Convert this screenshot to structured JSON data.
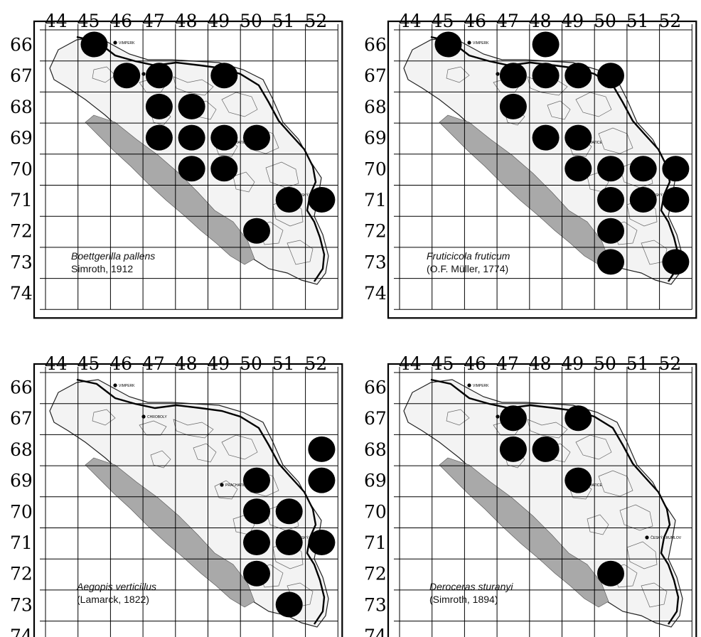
{
  "grid_columns": [
    "44",
    "45",
    "46",
    "47",
    "48",
    "49",
    "50",
    "51",
    "52"
  ],
  "grid_rows": [
    "66",
    "67",
    "68",
    "69",
    "70",
    "71",
    "72",
    "73",
    "74"
  ],
  "town_labels": [
    "VIMPERK",
    "CHROBOLY",
    "PRACHATICE",
    "ČESKÝ KRUMLOV"
  ],
  "colors": {
    "marker": "#000000",
    "forest": "#a9a9a9",
    "river": "#000000",
    "grid": "#000000"
  },
  "maps": [
    {
      "species": "Boettgerilla pallens",
      "author": "Simroth, 1912",
      "records": [
        [
          45,
          66
        ],
        [
          46,
          67
        ],
        [
          47,
          67
        ],
        [
          49,
          67
        ],
        [
          47,
          68
        ],
        [
          48,
          68
        ],
        [
          47,
          69
        ],
        [
          48,
          69
        ],
        [
          49,
          69
        ],
        [
          50,
          69
        ],
        [
          48,
          70
        ],
        [
          49,
          70
        ],
        [
          51,
          71
        ],
        [
          52,
          71
        ],
        [
          50,
          72
        ]
      ]
    },
    {
      "species": "Fruticicola fruticum",
      "author": "(O.F. Müller, 1774)",
      "records": [
        [
          45,
          66
        ],
        [
          48,
          66
        ],
        [
          47,
          67
        ],
        [
          48,
          67
        ],
        [
          49,
          67
        ],
        [
          50,
          67
        ],
        [
          47,
          68
        ],
        [
          48,
          69
        ],
        [
          49,
          69
        ],
        [
          49,
          70
        ],
        [
          50,
          70
        ],
        [
          51,
          70
        ],
        [
          52,
          70
        ],
        [
          50,
          71
        ],
        [
          51,
          71
        ],
        [
          52,
          71
        ],
        [
          50,
          72
        ],
        [
          50,
          73
        ],
        [
          52,
          73
        ]
      ]
    },
    {
      "species": "Aegopis verticillus",
      "author": "(Lamarck, 1822)",
      "records": [
        [
          52,
          68
        ],
        [
          50,
          69
        ],
        [
          52,
          69
        ],
        [
          50,
          70
        ],
        [
          51,
          70
        ],
        [
          50,
          71
        ],
        [
          51,
          71
        ],
        [
          52,
          71
        ],
        [
          50,
          72
        ],
        [
          51,
          73
        ]
      ]
    },
    {
      "species": "Deroceras sturanyi",
      "author": "(Simroth, 1894)",
      "records": [
        [
          47,
          67
        ],
        [
          49,
          67
        ],
        [
          47,
          68
        ],
        [
          48,
          68
        ],
        [
          49,
          69
        ],
        [
          50,
          72
        ]
      ]
    }
  ]
}
